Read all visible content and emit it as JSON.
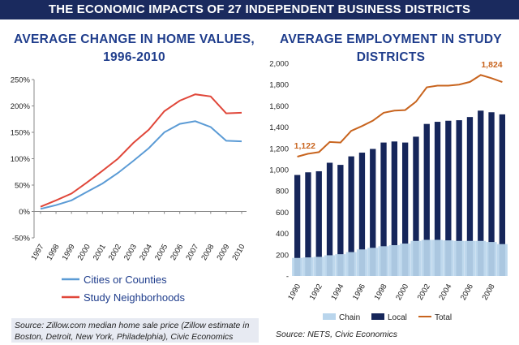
{
  "banner": "THE ECONOMIC IMPACTS OF 27 INDEPENDENT BUSINESS DISTRICTS",
  "chart_data": [
    {
      "type": "line",
      "title": "AVERAGE CHANGE IN HOME VALUES, 1996-2010",
      "title_lines": [
        "AVERAGE CHANGE IN HOME VALUES,",
        "1996-2010"
      ],
      "x": [
        "1997",
        "1998",
        "1999",
        "2000",
        "2001",
        "2002",
        "2003",
        "2004",
        "2005",
        "2006",
        "2007",
        "2008",
        "2009",
        "2010"
      ],
      "y_ticks": [
        "250%",
        "200%",
        "150%",
        "100%",
        "50%",
        "0%",
        "-50%"
      ],
      "ylim": [
        -50,
        250
      ],
      "grid": false,
      "legend": "bottom",
      "series": [
        {
          "name": "Cities or Counties",
          "color": "#5b9bd5",
          "values": [
            5,
            12,
            21,
            37,
            53,
            73,
            96,
            120,
            150,
            166,
            171,
            160,
            134,
            133
          ]
        },
        {
          "name": "Study Neighborhoods",
          "color": "#e0473a",
          "values": [
            9,
            21,
            34,
            55,
            77,
            100,
            130,
            155,
            190,
            210,
            222,
            218,
            186,
            187
          ]
        }
      ],
      "source": "Source: Zillow.com median home sale price (Zillow estimate in Boston, Detroit, New York, Philadelphia), Civic Economics"
    },
    {
      "type": "bar",
      "title": "AVERAGE EMPLOYMENT IN STUDY DISTRICTS",
      "title_lines": [
        "AVERAGE EMPLOYMENT IN STUDY",
        "DISTRICTS"
      ],
      "x": [
        1990,
        1991,
        1992,
        1993,
        1994,
        1995,
        1996,
        1997,
        1998,
        1999,
        2000,
        2001,
        2002,
        2003,
        2004,
        2005,
        2006,
        2007,
        2008,
        2009
      ],
      "x_tick_labels": [
        "1990",
        "1992",
        "1994",
        "1996",
        "1998",
        "2000",
        "2002",
        "2004",
        "2006",
        "2008"
      ],
      "y_ticks": [
        "2,000",
        "1,800",
        "1,600",
        "1,400",
        "1,200",
        "1,000",
        "800",
        "600",
        "400",
        "200",
        "-"
      ],
      "ylim": [
        0,
        2000
      ],
      "grid": false,
      "legend": "bottom",
      "series": [
        {
          "name": "Chain",
          "color": "#b9d5ec",
          "values": [
            170,
            175,
            180,
            195,
            205,
            225,
            250,
            265,
            280,
            290,
            305,
            330,
            340,
            340,
            335,
            330,
            330,
            330,
            320,
            300
          ]
        },
        {
          "name": "Local",
          "color": "#16265a",
          "values": [
            950,
            975,
            985,
            1065,
            1045,
            1125,
            1160,
            1195,
            1255,
            1265,
            1255,
            1310,
            1430,
            1450,
            1460,
            1465,
            1495,
            1555,
            1540,
            1520
          ]
        },
        {
          "name": "Total",
          "color": "#c8641e",
          "values": [
            1122,
            1150,
            1165,
            1260,
            1255,
            1365,
            1410,
            1460,
            1535,
            1555,
            1560,
            1640,
            1775,
            1790,
            1790,
            1800,
            1825,
            1890,
            1860,
            1824
          ]
        }
      ],
      "data_labels": [
        "1,122",
        "1,824"
      ],
      "source": "Source: NETS, Civic Economics"
    }
  ]
}
